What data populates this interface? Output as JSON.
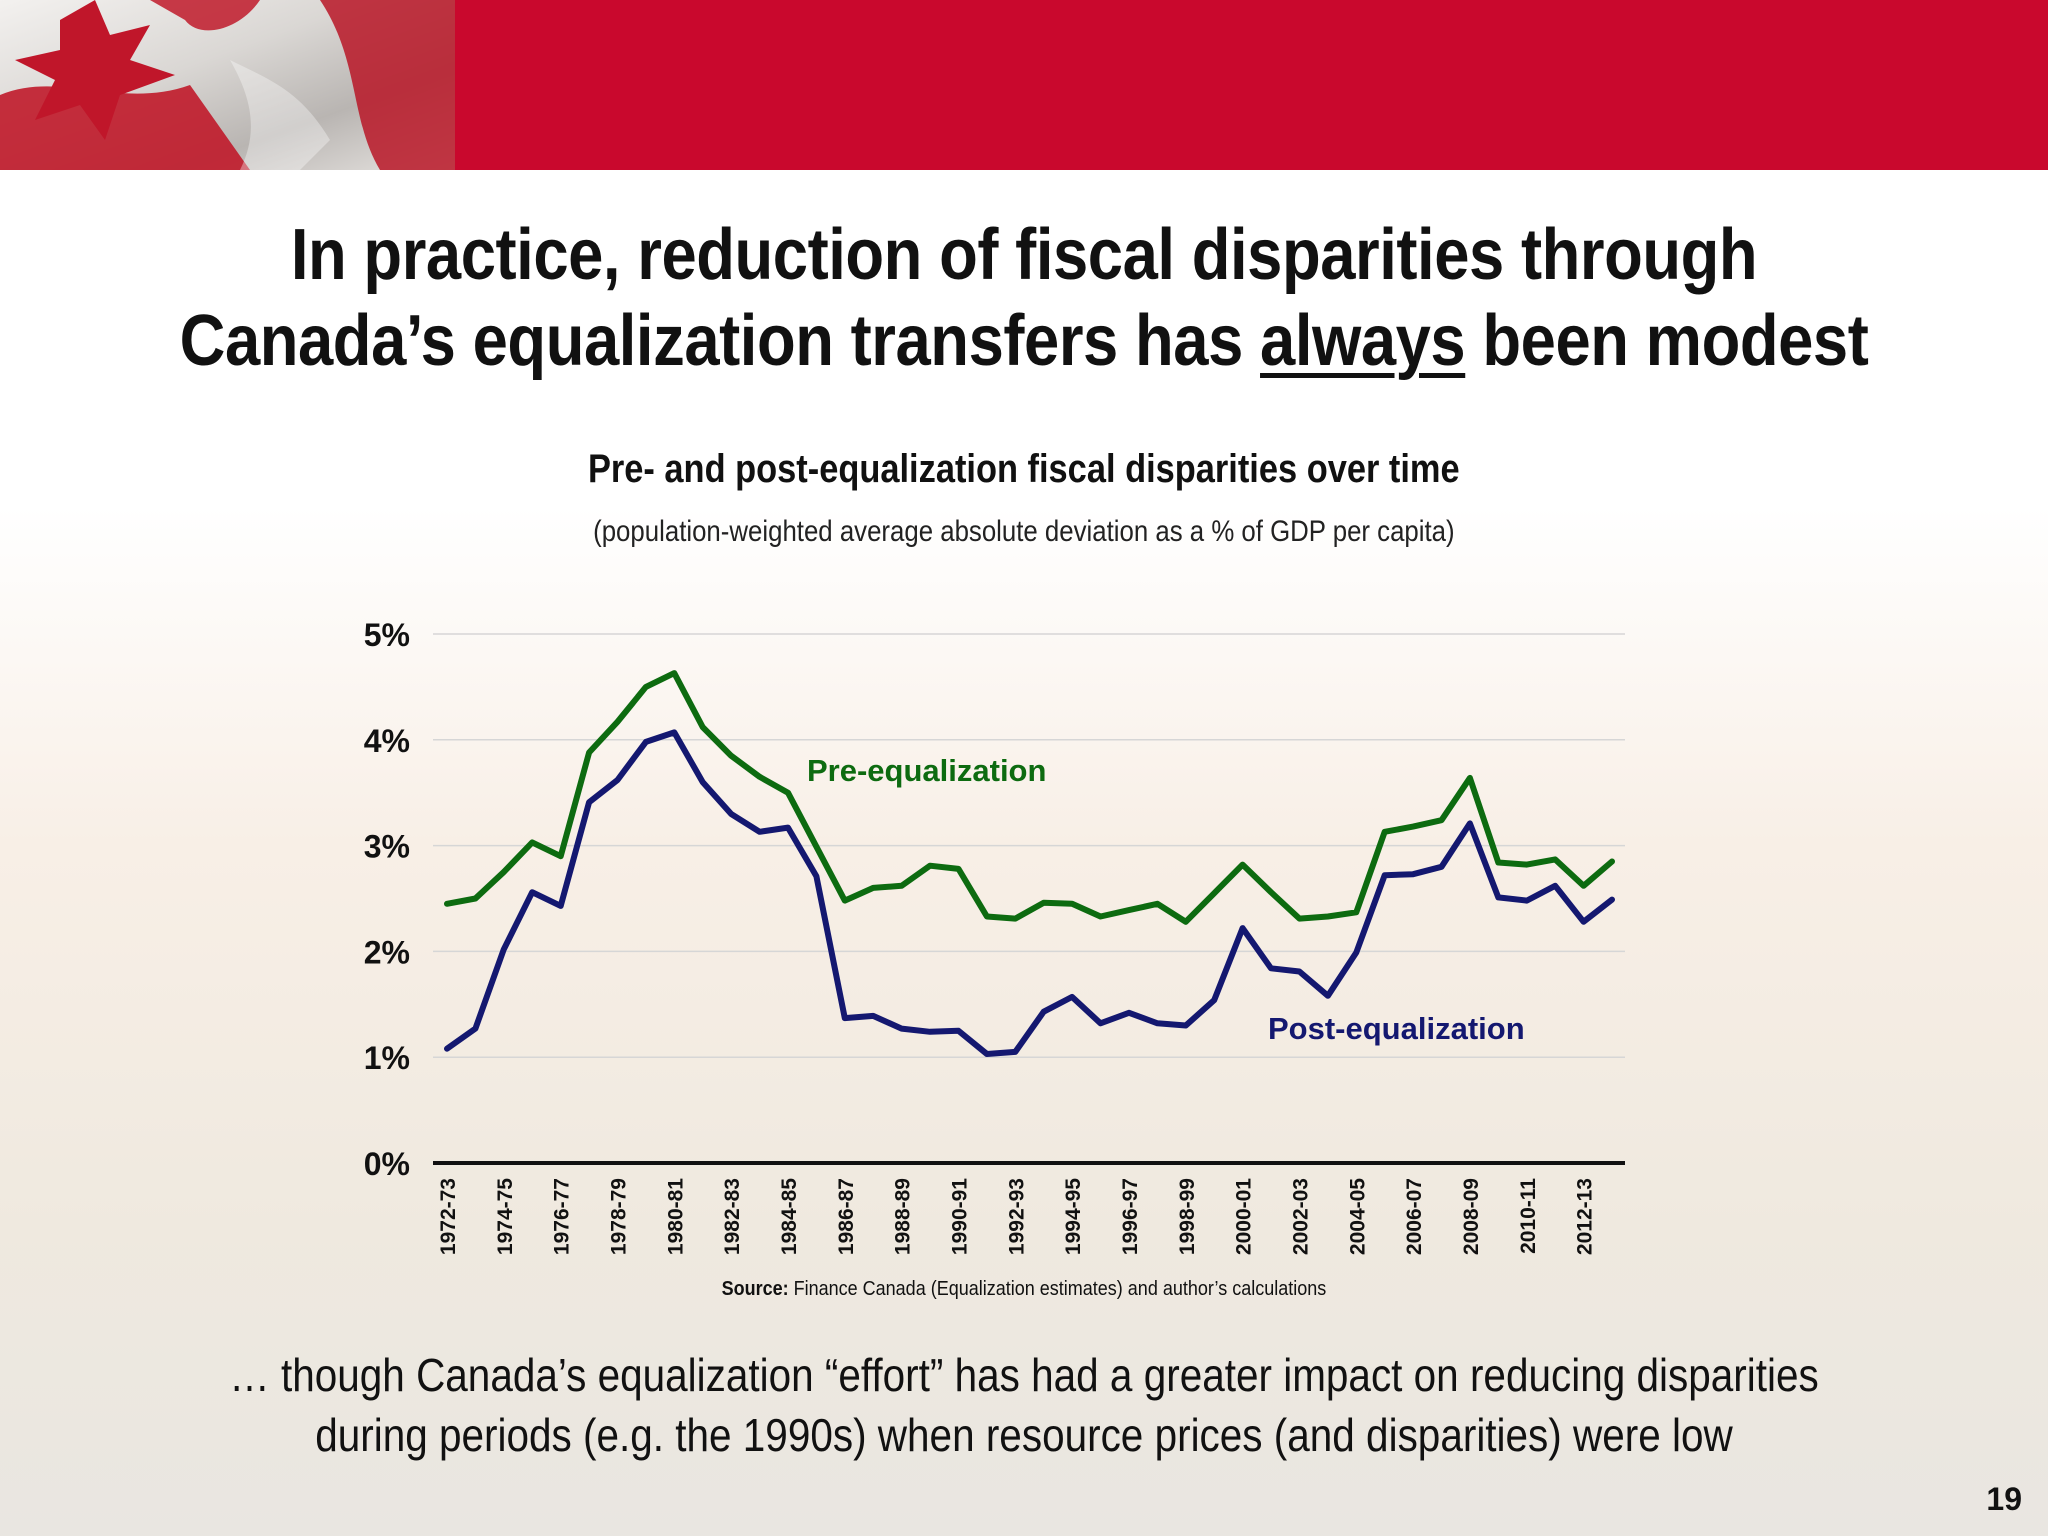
{
  "slide": {
    "title_line1": "In practice, reduction of fiscal disparities through",
    "title_line2_pre": "Canada’s equalization transfers has ",
    "title_line2_emph": "always",
    "title_line2_post": " been modest",
    "footnote_line1": "… though Canada’s equalization “effort” has had a greater impact on reducing disparities",
    "footnote_line2": "during periods (e.g. the 1990s) when resource prices (and disparities) were low",
    "page_number": "19",
    "source_label": "Source:",
    "source_text": " Finance Canada (Equalization estimates) and author’s calculations"
  },
  "colors": {
    "banner": "#c9082d",
    "pre_equalization": "#0d6b10",
    "post_equalization": "#141870"
  },
  "chart_data": {
    "type": "line",
    "title": "Pre- and post-equalization fiscal disparities over time",
    "subtitle": "(population-weighted average absolute deviation as a % of GDP per capita)",
    "ylim": [
      0,
      5
    ],
    "yticks": [
      "0%",
      "1%",
      "2%",
      "3%",
      "4%",
      "5%"
    ],
    "grid": true,
    "categories": [
      "1972-73",
      "1973-74",
      "1974-75",
      "1975-76",
      "1976-77",
      "1977-78",
      "1978-79",
      "1979-80",
      "1980-81",
      "1981-82",
      "1982-83",
      "1983-84",
      "1984-85",
      "1985-86",
      "1986-87",
      "1987-88",
      "1988-89",
      "1989-90",
      "1990-91",
      "1991-92",
      "1992-93",
      "1993-94",
      "1994-95",
      "1995-96",
      "1996-97",
      "1997-98",
      "1998-99",
      "1999-00",
      "2000-01",
      "2001-02",
      "2002-03",
      "2003-04",
      "2004-05",
      "2005-06",
      "2006-07",
      "2007-08",
      "2008-09",
      "2009-10",
      "2010-11",
      "2011-12",
      "2012-13",
      "2013-14"
    ],
    "tick_labels": [
      "1972-73",
      "1974-75",
      "1976-77",
      "1978-79",
      "1980-81",
      "1982-83",
      "1984-85",
      "1986-87",
      "1988-89",
      "1990-91",
      "1992-93",
      "1994-95",
      "1996-97",
      "1998-99",
      "2000-01",
      "2002-03",
      "2004-05",
      "2006-07",
      "2008-09",
      "2010-11",
      "2012-13"
    ],
    "series": [
      {
        "name": "Pre-equalization",
        "values": [
          2.45,
          2.5,
          2.75,
          3.03,
          2.9,
          3.88,
          4.17,
          4.5,
          4.63,
          4.12,
          3.85,
          3.65,
          3.5,
          2.99,
          2.48,
          2.6,
          2.62,
          2.81,
          2.78,
          2.33,
          2.31,
          2.46,
          2.45,
          2.33,
          2.39,
          2.45,
          2.28,
          2.55,
          2.82,
          2.56,
          2.31,
          2.33,
          2.37,
          3.13,
          3.18,
          3.24,
          3.64,
          2.84,
          2.82,
          2.87,
          2.62,
          2.85
        ]
      },
      {
        "name": "Post-equalization",
        "values": [
          1.08,
          1.27,
          2.02,
          2.56,
          2.43,
          3.41,
          3.62,
          3.98,
          4.07,
          3.6,
          3.3,
          3.13,
          3.17,
          2.71,
          1.37,
          1.39,
          1.27,
          1.24,
          1.25,
          1.03,
          1.05,
          1.43,
          1.57,
          1.32,
          1.42,
          1.32,
          1.3,
          1.54,
          2.22,
          1.84,
          1.81,
          1.58,
          1.99,
          2.72,
          2.73,
          2.8,
          3.21,
          2.51,
          2.48,
          2.62,
          2.28,
          2.49
        ]
      }
    ]
  }
}
